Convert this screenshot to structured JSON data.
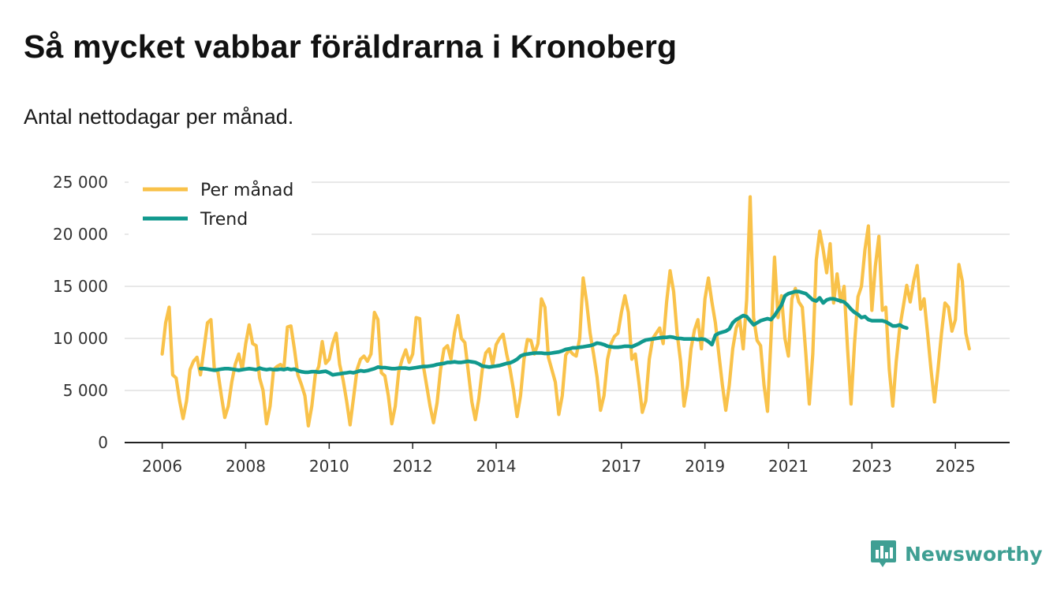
{
  "header": {
    "title": "Så mycket vabbar föräldrarna i Kronoberg",
    "subtitle": "Antal nettodagar per månad."
  },
  "branding": {
    "name": "Newsworthy",
    "logo_icon": "bar-chart-speech-bubble-icon",
    "color": "#3f9f93"
  },
  "colors": {
    "per_month": "#f9c24a",
    "trend": "#11998e",
    "grid": "#d9d9d9",
    "axis": "#222222"
  },
  "chart_data": {
    "type": "line",
    "title": "Så mycket vabbar föräldrarna i Kronoberg",
    "subtitle": "Antal nettodagar per månad.",
    "xlabel": "",
    "ylabel": "",
    "ylim": [
      0,
      25000
    ],
    "xlim": [
      2005.1,
      2026.3
    ],
    "yticks": [
      0,
      5000,
      10000,
      15000,
      20000,
      25000
    ],
    "ytick_labels": [
      "0",
      "5 000",
      "10 000",
      "15 000",
      "20 000",
      "25 000"
    ],
    "xticks": [
      2006,
      2008,
      2010,
      2012,
      2014,
      2017,
      2019,
      2021,
      2023,
      2025
    ],
    "xtick_labels": [
      "2006",
      "2008",
      "2010",
      "2012",
      "2014",
      "2017",
      "2019",
      "2021",
      "2023",
      "2025"
    ],
    "grid": true,
    "legend_position": "top-left",
    "series": [
      {
        "name": "Per månad",
        "key": "per_month",
        "start": 2006.0,
        "step": 0.0833333,
        "values": [
          8500,
          11500,
          13000,
          6500,
          6200,
          4000,
          2300,
          4000,
          7000,
          7800,
          8200,
          6500,
          9000,
          11500,
          11800,
          7000,
          6800,
          4500,
          2400,
          3500,
          5800,
          7500,
          8500,
          7000,
          9500,
          11300,
          9500,
          9300,
          6200,
          5000,
          1800,
          3500,
          7000,
          7300,
          7500,
          7200,
          11100,
          11200,
          9000,
          6500,
          5600,
          4500,
          1600,
          3500,
          6500,
          7300,
          9700,
          7600,
          8000,
          9500,
          10500,
          7500,
          6000,
          4000,
          1700,
          4300,
          7000,
          8000,
          8300,
          7800,
          8500,
          12500,
          11800,
          6700,
          6400,
          4500,
          1800,
          3500,
          6800,
          8000,
          8900,
          7700,
          8500,
          12000,
          11900,
          7500,
          5500,
          3500,
          1900,
          3800,
          7000,
          9000,
          9300,
          8000,
          10500,
          12200,
          10000,
          9600,
          6800,
          3900,
          2200,
          4200,
          7000,
          8600,
          9000,
          7500,
          9400,
          10000,
          10400,
          8500,
          7000,
          5000,
          2500,
          4500,
          8000,
          9900,
          9800,
          8500,
          9500,
          13800,
          13000,
          8200,
          7000,
          5800,
          2700,
          4500,
          8400,
          8900,
          8500,
          8300,
          10000,
          15800,
          13500,
          10500,
          8500,
          6300,
          3100,
          4500,
          8000,
          9500,
          10200,
          10500,
          12500,
          14100,
          12500,
          8000,
          8500,
          5800,
          2900,
          4000,
          8000,
          10000,
          10500,
          11000,
          9500,
          13500,
          16500,
          14500,
          10500,
          7800,
          3500,
          5500,
          9000,
          10800,
          11800,
          9000,
          13800,
          15800,
          13500,
          11500,
          8500,
          5600,
          3100,
          5500,
          9000,
          11000,
          11800,
          9000,
          13700,
          23600,
          12000,
          9800,
          9300,
          5500,
          3000,
          10000,
          17800,
          12000,
          14100,
          10000,
          8300,
          13800,
          14800,
          13500,
          13000,
          8500,
          3700,
          8500,
          17500,
          20300,
          18500,
          16300,
          19100,
          13400,
          16200,
          13500,
          15000,
          9000,
          3700,
          9500,
          14000,
          15000,
          18500,
          20800,
          12700,
          17000,
          19800,
          12700,
          13000,
          7000,
          3500,
          7800,
          11000,
          13000,
          15100,
          13500,
          15500,
          17000,
          12800,
          13800,
          10500,
          7000,
          3900,
          7000,
          10500,
          13400,
          13000,
          10700,
          11800,
          17100,
          15500,
          10500,
          9000
        ]
      },
      {
        "name": "Trend",
        "key": "trend",
        "start": 2006.9167,
        "step": 0.0833333,
        "values": [
          7100,
          7100,
          7050,
          7000,
          6950,
          7000,
          7050,
          7100,
          7100,
          7050,
          7000,
          6950,
          7000,
          7050,
          7100,
          7050,
          7000,
          7150,
          7050,
          7000,
          7050,
          7000,
          7000,
          7050,
          7000,
          7100,
          7000,
          7050,
          6900,
          6800,
          6750,
          6750,
          6800,
          6800,
          6750,
          6800,
          6850,
          6700,
          6500,
          6550,
          6600,
          6650,
          6700,
          6750,
          6700,
          6800,
          6900,
          6850,
          6900,
          7000,
          7100,
          7250,
          7200,
          7200,
          7150,
          7100,
          7100,
          7150,
          7150,
          7150,
          7100,
          7150,
          7200,
          7250,
          7300,
          7300,
          7350,
          7400,
          7500,
          7550,
          7600,
          7700,
          7700,
          7750,
          7700,
          7700,
          7750,
          7800,
          7750,
          7700,
          7550,
          7350,
          7300,
          7250,
          7300,
          7350,
          7400,
          7500,
          7600,
          7650,
          7800,
          8000,
          8300,
          8450,
          8500,
          8550,
          8600,
          8600,
          8600,
          8550,
          8550,
          8600,
          8650,
          8700,
          8800,
          8950,
          9000,
          9100,
          9100,
          9150,
          9200,
          9250,
          9300,
          9400,
          9550,
          9500,
          9400,
          9250,
          9200,
          9150,
          9150,
          9200,
          9250,
          9250,
          9200,
          9350,
          9500,
          9700,
          9850,
          9900,
          9950,
          10000,
          10050,
          10100,
          10100,
          10150,
          10100,
          10000,
          10000,
          9950,
          9950,
          9950,
          9950,
          9900,
          9950,
          9900,
          9700,
          9400,
          10300,
          10500,
          10600,
          10700,
          10900,
          11500,
          11800,
          12000,
          12200,
          12100,
          11700,
          11300,
          11500,
          11700,
          11800,
          11900,
          11800,
          12200,
          12700,
          13200,
          14100,
          14300,
          14400,
          14500,
          14500,
          14400,
          14300,
          14000,
          13700,
          13600,
          13900,
          13400,
          13700,
          13800,
          13800,
          13700,
          13600,
          13500,
          13200,
          12800,
          12500,
          12300,
          12000,
          12100,
          11800,
          11700,
          11700,
          11700,
          11700,
          11600,
          11400,
          11200,
          11200,
          11300,
          11100,
          11000
        ]
      }
    ]
  }
}
